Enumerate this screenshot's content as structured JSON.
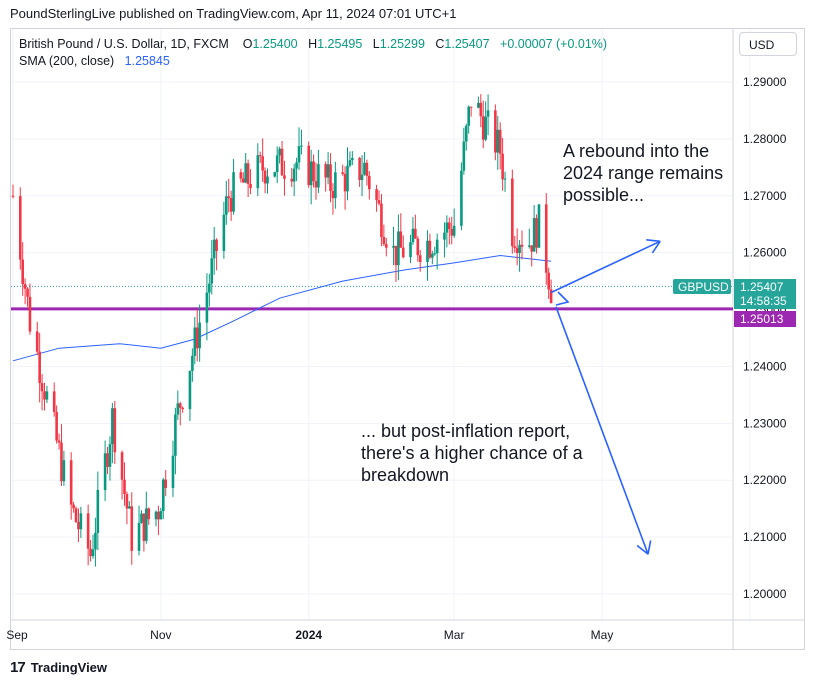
{
  "header": {
    "attribution": "PoundSterlingLive published on TradingView.com, Apr 11, 2024 07:01 UTC+1"
  },
  "legend": {
    "symbol": "British Pound / U.S. Dollar, 1D, FXCM",
    "o_label": "O",
    "o_value": "1.25400",
    "h_label": "H",
    "h_value": "1.25495",
    "l_label": "L",
    "l_value": "1.25299",
    "c_label": "C",
    "c_value": "1.25407",
    "change": "+0.00007 (+0.01%)",
    "sma_label": "SMA (200, close)",
    "sma_value": "1.25845"
  },
  "currency_button": "USD",
  "footer": {
    "logo": "17",
    "brand": "TradingView"
  },
  "annotations": {
    "upside": "A rebound into the 2024 range remains possible...",
    "downside": "... but post-inflation report, there's a higher chance of a breakdown"
  },
  "badges": {
    "symbol": "GBPUSD",
    "price": "1.25407",
    "countdown": "14:58:35",
    "level": "1.25013"
  },
  "colors": {
    "up": "#089981",
    "down": "#f23645",
    "sma": "#2962ff",
    "level_line": "#9c27b0",
    "arrow": "#2962ff",
    "price_badge": "#26a69a"
  },
  "chart_data": {
    "type": "candlestick",
    "symbol": "GBPUSD",
    "interval": "1D",
    "y_axis": {
      "ticks": [
        1.2,
        1.21,
        1.22,
        1.23,
        1.24,
        1.25,
        1.26,
        1.27,
        1.28,
        1.29
      ],
      "range": [
        1.1935,
        1.2965
      ]
    },
    "x_axis": {
      "labels": [
        "Sep",
        "Nov",
        "2024",
        "Mar",
        "May"
      ],
      "range": [
        "2023-09-01",
        "2024-06-15"
      ]
    },
    "support_level": 1.25013,
    "last_price": 1.25407,
    "sma_200": {
      "name": "SMA (200, close)",
      "points": [
        [
          "2023-09-01",
          1.241
        ],
        [
          "2023-09-20",
          1.2432
        ],
        [
          "2023-10-15",
          1.244
        ],
        [
          "2023-11-01",
          1.2432
        ],
        [
          "2023-11-15",
          1.2448
        ],
        [
          "2023-12-01",
          1.248
        ],
        [
          "2023-12-20",
          1.252
        ],
        [
          "2024-01-15",
          1.255
        ],
        [
          "2024-02-10",
          1.257
        ],
        [
          "2024-03-01",
          1.2582
        ],
        [
          "2024-03-20",
          1.2595
        ],
        [
          "2024-04-10",
          1.2585
        ]
      ]
    },
    "swing_points": [
      [
        "2023-09-01",
        1.27
      ],
      [
        "2023-09-08",
        1.248
      ],
      [
        "2023-09-25",
        1.215
      ],
      [
        "2023-10-03",
        1.207
      ],
      [
        "2023-10-12",
        1.231
      ],
      [
        "2023-10-20",
        1.21
      ],
      [
        "2023-10-31",
        1.215
      ],
      [
        "2023-11-08",
        1.232
      ],
      [
        "2023-11-15",
        1.244
      ],
      [
        "2023-11-29",
        1.27
      ],
      [
        "2023-12-13",
        1.275
      ],
      [
        "2023-12-28",
        1.276
      ],
      [
        "2024-01-10",
        1.272
      ],
      [
        "2024-01-24",
        1.275
      ],
      [
        "2024-02-05",
        1.26
      ],
      [
        "2024-02-20",
        1.262
      ],
      [
        "2024-03-01",
        1.265
      ],
      [
        "2024-03-08",
        1.287
      ],
      [
        "2024-03-20",
        1.278
      ],
      [
        "2024-03-25",
        1.264
      ],
      [
        "2024-04-01",
        1.262
      ],
      [
        "2024-04-05",
        1.265
      ],
      [
        "2024-04-10",
        1.254
      ]
    ],
    "projections": {
      "up": {
        "from": [
          "2024-04-10",
          1.253
        ],
        "to": [
          "2024-05-25",
          1.262
        ]
      },
      "down": {
        "from": [
          "2024-04-12",
          1.2505
        ],
        "to": [
          "2024-05-20",
          1.207
        ]
      }
    }
  }
}
